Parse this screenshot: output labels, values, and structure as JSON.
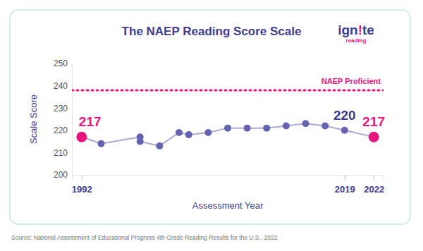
{
  "chart_data": {
    "type": "line",
    "title": "The NAEP Reading Score Scale",
    "x_label": "Assessment Year",
    "y_label": "Scale Score",
    "x": [
      1992,
      1994,
      1998,
      1998,
      2000,
      2002,
      2003,
      2005,
      2007,
      2009,
      2011,
      2013,
      2015,
      2017,
      2019,
      2022
    ],
    "values": [
      217,
      214,
      217,
      215,
      213,
      219,
      218,
      219,
      221,
      221,
      221,
      222,
      223,
      222,
      220,
      217
    ],
    "color": "#6563b0",
    "colors": [
      "#e6157e",
      "#6563b0",
      "#6563b0",
      "#6563b0",
      "#6563b0",
      "#6563b0",
      "#6563b0",
      "#6563b0",
      "#6563b0",
      "#6563b0",
      "#6563b0",
      "#6563b0",
      "#6563b0",
      "#6563b0",
      "#6563b0",
      "#e6157e"
    ],
    "marker": "circle",
    "xlim": [
      1991,
      2023
    ],
    "xticks": [
      1992,
      2019,
      2022
    ],
    "ylim": [
      200,
      250
    ],
    "yticks": [
      200,
      210,
      220,
      230,
      240,
      250
    ],
    "annotations": [
      {
        "text": "NAEP Proficient",
        "y": 238,
        "color": "#e6157e",
        "line_style": "dotted"
      },
      {
        "text": "217",
        "x": 1992,
        "y": 217,
        "color": "#e6157e"
      },
      {
        "text": "220",
        "x": 2019,
        "y": 220,
        "color": "#3f3d8f"
      },
      {
        "text": "217",
        "x": 2022,
        "y": 217,
        "color": "#e6157e"
      }
    ]
  },
  "logo": {
    "name": "ign!te",
    "tagline": "reading"
  },
  "source": "Source: National Assessment of Educational Progress 4th Grade Reading Results for the U.S., 2022"
}
